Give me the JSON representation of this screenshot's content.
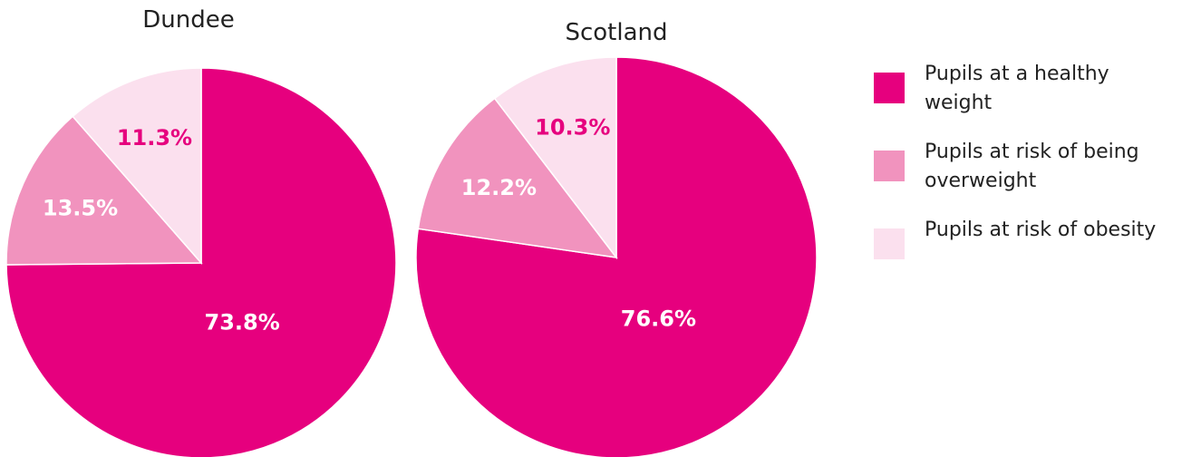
{
  "chart_data": [
    {
      "type": "pie",
      "title": "Dundee",
      "categories": [
        "Pupils at a healthy weight",
        "Pupils at risk of being overweight",
        "Pupils at risk of obesity"
      ],
      "values": [
        73.8,
        13.5,
        11.3
      ],
      "value_labels": [
        "73.8%",
        "13.5%",
        "11.3%"
      ],
      "colors": [
        "#e6007e",
        "#f193be",
        "#fbe0ee"
      ]
    },
    {
      "type": "pie",
      "title": "Scotland",
      "values": [
        76.6,
        12.2,
        10.3
      ],
      "value_labels": [
        "76.6%",
        "12.2%",
        "10.3%"
      ],
      "colors": [
        "#e6007e",
        "#f193be",
        "#fbe0ee"
      ]
    }
  ]
}
